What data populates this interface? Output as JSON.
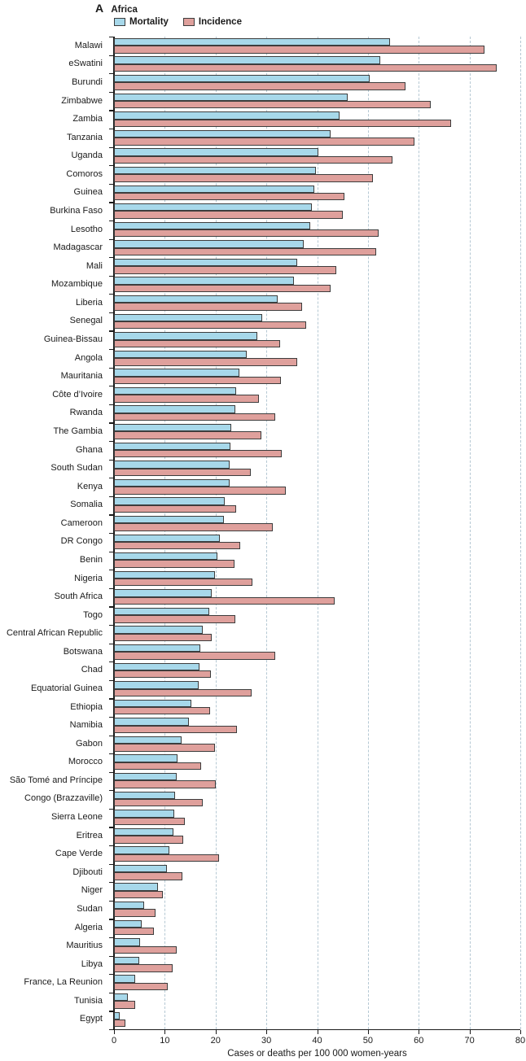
{
  "panel": {
    "letter": "A",
    "title": "Africa"
  },
  "legend": [
    {
      "label": "Mortality",
      "color": "#A7D8EA"
    },
    {
      "label": "Incidence",
      "color": "#DFA09C"
    }
  ],
  "colors": {
    "mortality_fill": "#A7D8EA",
    "incidence_fill": "#DFA09C",
    "bar_border": "#3d3d3d",
    "gridline": "#b5c8d3",
    "axis": "#1a1a1a"
  },
  "chart_data": {
    "type": "bar",
    "orientation": "horizontal",
    "title": "Africa",
    "xlabel": "Cases or deaths per 100 000 women-years",
    "ylabel": "",
    "xlim": [
      0,
      80
    ],
    "xticks": [
      0,
      10,
      20,
      30,
      40,
      50,
      60,
      70,
      80
    ],
    "grid": "vertical dashed gridlines every 10",
    "legend_position": "top",
    "categories": [
      "Malawi",
      "eSwatini",
      "Burundi",
      "Zimbabwe",
      "Zambia",
      "Tanzania",
      "Uganda",
      "Comoros",
      "Guinea",
      "Burkina Faso",
      "Lesotho",
      "Madagascar",
      "Mali",
      "Mozambique",
      "Liberia",
      "Senegal",
      "Guinea-Bissau",
      "Angola",
      "Mauritania",
      "Côte d’Ivoire",
      "Rwanda",
      "The Gambia",
      "Ghana",
      "South Sudan",
      "Kenya",
      "Somalia",
      "Cameroon",
      "DR Congo",
      "Benin",
      "Nigeria",
      "South Africa",
      "Togo",
      "Central African Republic",
      "Botswana",
      "Chad",
      "Equatorial Guinea",
      "Ethiopia",
      "Namibia",
      "Gabon",
      "Morocco",
      "São Tomé and Príncipe",
      "Congo (Brazzaville)",
      "Sierra Leone",
      "Eritrea",
      "Cape Verde",
      "Djibouti",
      "Niger",
      "Sudan",
      "Algeria",
      "Mauritius",
      "Libya",
      "France, La Reunion",
      "Tunisia",
      "Egypt"
    ],
    "series": [
      {
        "name": "Mortality",
        "values": [
          54.4,
          52.4,
          50.3,
          46.0,
          44.4,
          42.7,
          40.3,
          39.8,
          39.4,
          39.0,
          38.7,
          37.4,
          36.1,
          35.4,
          32.2,
          29.2,
          28.2,
          26.2,
          24.7,
          24.1,
          23.9,
          23.1,
          23.0,
          22.8,
          22.7,
          21.8,
          21.6,
          20.9,
          20.3,
          19.9,
          19.3,
          18.7,
          17.5,
          17.0,
          16.8,
          16.6,
          15.3,
          14.7,
          13.3,
          12.5,
          12.3,
          12.0,
          11.9,
          11.7,
          10.9,
          10.5,
          8.7,
          6.0,
          5.4,
          5.2,
          5.0,
          4.1,
          2.8,
          1.1
        ]
      },
      {
        "name": "Incidence",
        "values": [
          72.9,
          75.3,
          57.4,
          62.3,
          66.4,
          59.1,
          54.8,
          51.0,
          45.3,
          45.0,
          52.1,
          51.6,
          43.7,
          42.7,
          37.1,
          37.8,
          32.7,
          36.0,
          32.8,
          28.5,
          31.8,
          29.0,
          33.0,
          27.0,
          33.8,
          24.0,
          31.3,
          24.8,
          23.8,
          27.2,
          43.5,
          23.9,
          19.2,
          31.7,
          19.1,
          27.1,
          18.9,
          24.2,
          19.9,
          17.2,
          20.0,
          17.4,
          13.9,
          13.7,
          20.7,
          13.4,
          9.6,
          8.1,
          7.9,
          12.4,
          11.6,
          10.6,
          4.1,
          2.3
        ]
      }
    ]
  }
}
